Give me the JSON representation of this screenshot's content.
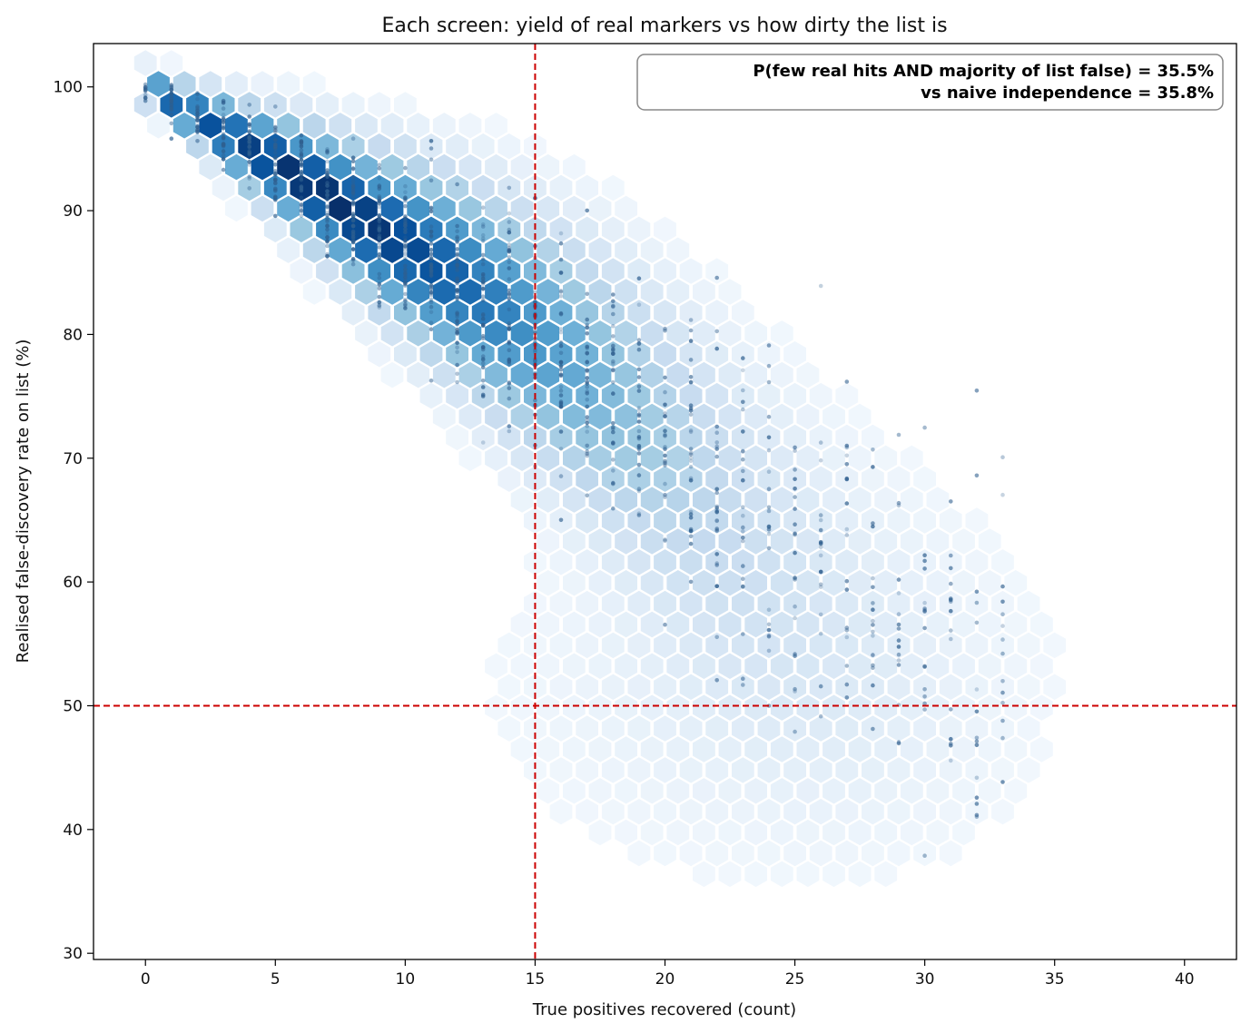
{
  "chart_data": {
    "type": "scatter",
    "title": "Each screen: yield of real markers vs how dirty the list is",
    "xlabel": "True positives recovered (count)",
    "ylabel": "Realised false-discovery rate on list (%)",
    "xlim": [
      -2,
      42
    ],
    "ylim": [
      29.5,
      103.5
    ],
    "x_ticks": [
      0,
      5,
      10,
      15,
      20,
      25,
      30,
      35,
      40
    ],
    "y_ticks": [
      30,
      40,
      50,
      60,
      70,
      80,
      90,
      100
    ],
    "grid": false,
    "thresholds": {
      "x": 15,
      "y": 50,
      "color": "#cc0000"
    },
    "annotation": {
      "line1": "P(few real hits AND majority of list false) = 35.5%",
      "line2": "vs naive independence = 35.8%",
      "placement": "top-right"
    },
    "density_colormap": "Blues",
    "point_color": "#2f5f8f",
    "ridge": [
      {
        "x": 0,
        "y": 100.0
      },
      {
        "x": 1,
        "y": 98.8
      },
      {
        "x": 2,
        "y": 97.6
      },
      {
        "x": 3,
        "y": 96.4
      },
      {
        "x": 4,
        "y": 95.0
      },
      {
        "x": 5,
        "y": 93.9
      },
      {
        "x": 6,
        "y": 92.5
      },
      {
        "x": 7,
        "y": 91.2
      },
      {
        "x": 8,
        "y": 89.8
      },
      {
        "x": 9,
        "y": 88.4
      },
      {
        "x": 10,
        "y": 87.3
      },
      {
        "x": 11,
        "y": 85.8
      },
      {
        "x": 12,
        "y": 84.6
      },
      {
        "x": 13,
        "y": 83.0
      },
      {
        "x": 14,
        "y": 81.6
      },
      {
        "x": 15,
        "y": 80.0
      },
      {
        "x": 16,
        "y": 78.4
      },
      {
        "x": 17,
        "y": 76.7
      },
      {
        "x": 18,
        "y": 75.0
      },
      {
        "x": 19,
        "y": 73.2
      },
      {
        "x": 20,
        "y": 71.3
      },
      {
        "x": 21,
        "y": 69.5
      },
      {
        "x": 22,
        "y": 67.6
      },
      {
        "x": 23,
        "y": 65.8
      },
      {
        "x": 24,
        "y": 64.0
      },
      {
        "x": 25,
        "y": 62.5
      },
      {
        "x": 26,
        "y": 61.0
      },
      {
        "x": 27,
        "y": 59.5
      },
      {
        "x": 28,
        "y": 58.0
      },
      {
        "x": 29,
        "y": 57.0
      },
      {
        "x": 30,
        "y": 56.0
      },
      {
        "x": 31,
        "y": 55.0
      },
      {
        "x": 32,
        "y": 54.0
      },
      {
        "x": 33,
        "y": 53.0
      }
    ]
  }
}
